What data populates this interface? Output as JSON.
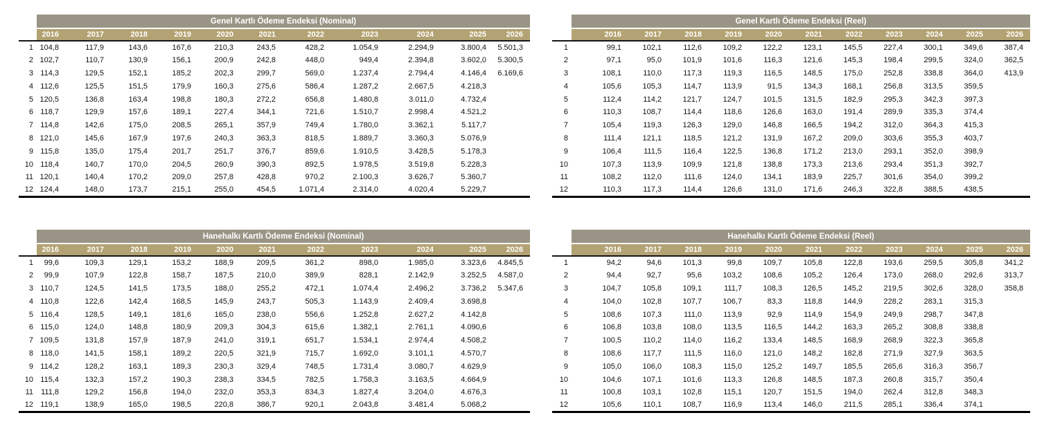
{
  "colors": {
    "title_bar_bg": "#999485",
    "year_bar_bg": "#B3A273",
    "header_text": "#ffffff",
    "body_text": "#111111"
  },
  "years": [
    "2016",
    "2017",
    "2018",
    "2019",
    "2020",
    "2021",
    "2022",
    "2023",
    "2024",
    "2025",
    "2026"
  ],
  "tables": [
    {
      "title": "Genel Kartlı Ödeme Endeksi (Nominal)",
      "rows": [
        {
          "label": "1",
          "values": [
            "104,8",
            "117,9",
            "143,6",
            "167,6",
            "210,3",
            "243,5",
            "428,2",
            "1.054,9",
            "2.294,9",
            "3.800,4",
            "5.501,3"
          ]
        },
        {
          "label": "2",
          "values": [
            "102,7",
            "110,7",
            "130,9",
            "156,1",
            "200,9",
            "242,8",
            "448,0",
            "949,4",
            "2.394,8",
            "3.602,0",
            "5.300,5"
          ]
        },
        {
          "label": "3",
          "values": [
            "114,3",
            "129,5",
            "152,1",
            "185,2",
            "202,3",
            "299,7",
            "569,0",
            "1.237,4",
            "2.794,4",
            "4.146,4",
            "6.169,6"
          ]
        },
        {
          "label": "4",
          "values": [
            "112,6",
            "125,5",
            "151,5",
            "179,9",
            "160,3",
            "275,6",
            "586,4",
            "1.287,2",
            "2.667,5",
            "4.218,3",
            ""
          ]
        },
        {
          "label": "5",
          "values": [
            "120,5",
            "136,8",
            "163,4",
            "198,8",
            "180,3",
            "272,2",
            "656,8",
            "1.480,8",
            "3.011,0",
            "4.732,4",
            ""
          ]
        },
        {
          "label": "6",
          "values": [
            "118,7",
            "129,9",
            "157,6",
            "189,1",
            "227,4",
            "344,1",
            "721,6",
            "1.510,7",
            "2.998,4",
            "4.521,2",
            ""
          ]
        },
        {
          "label": "7",
          "values": [
            "114,8",
            "142,6",
            "175,0",
            "208,5",
            "265,1",
            "357,9",
            "749,4",
            "1.780,0",
            "3.362,1",
            "5.117,7",
            ""
          ]
        },
        {
          "label": "8",
          "values": [
            "121,0",
            "145,6",
            "167,9",
            "197,6",
            "240,3",
            "363,3",
            "818,5",
            "1.889,7",
            "3.360,3",
            "5.076,9",
            ""
          ]
        },
        {
          "label": "9",
          "values": [
            "115,8",
            "135,0",
            "175,4",
            "201,7",
            "251,7",
            "376,7",
            "859,6",
            "1.910,5",
            "3.428,5",
            "5.178,3",
            ""
          ]
        },
        {
          "label": "10",
          "values": [
            "118,4",
            "140,7",
            "170,0",
            "204,5",
            "260,9",
            "390,3",
            "892,5",
            "1.978,5",
            "3.519,8",
            "5.228,3",
            ""
          ]
        },
        {
          "label": "11",
          "values": [
            "120,1",
            "140,4",
            "170,2",
            "209,0",
            "257,8",
            "428,8",
            "970,2",
            "2.100,3",
            "3.626,7",
            "5.360,7",
            ""
          ]
        },
        {
          "label": "12",
          "values": [
            "124,4",
            "148,0",
            "173,7",
            "215,1",
            "255,0",
            "454,5",
            "1.071,4",
            "2.314,0",
            "4.020,4",
            "5.229,7",
            ""
          ]
        }
      ]
    },
    {
      "title": "Genel Kartlı Ödeme Endeksi (Reel)",
      "rows": [
        {
          "label": "1",
          "values": [
            "99,1",
            "102,1",
            "112,6",
            "109,2",
            "122,2",
            "123,1",
            "145,5",
            "227,4",
            "300,1",
            "349,6",
            "387,4"
          ]
        },
        {
          "label": "2",
          "values": [
            "97,1",
            "95,0",
            "101,9",
            "101,6",
            "116,3",
            "121,6",
            "145,3",
            "198,4",
            "299,5",
            "324,0",
            "362,5"
          ]
        },
        {
          "label": "3",
          "values": [
            "108,1",
            "110,0",
            "117,3",
            "119,3",
            "116,5",
            "148,5",
            "175,0",
            "252,8",
            "338,8",
            "364,0",
            "413,9"
          ]
        },
        {
          "label": "4",
          "values": [
            "105,6",
            "105,3",
            "114,7",
            "113,9",
            "91,5",
            "134,3",
            "168,1",
            "256,8",
            "313,5",
            "359,5",
            ""
          ]
        },
        {
          "label": "5",
          "values": [
            "112,4",
            "114,2",
            "121,7",
            "124,7",
            "101,5",
            "131,5",
            "182,9",
            "295,3",
            "342,3",
            "397,3",
            ""
          ]
        },
        {
          "label": "6",
          "values": [
            "110,3",
            "108,7",
            "114,4",
            "118,6",
            "126,6",
            "163,0",
            "191,4",
            "289,9",
            "335,3",
            "374,4",
            ""
          ]
        },
        {
          "label": "7",
          "values": [
            "105,4",
            "119,3",
            "126,3",
            "129,0",
            "146,8",
            "166,5",
            "194,2",
            "312,0",
            "364,3",
            "415,3",
            ""
          ]
        },
        {
          "label": "8",
          "values": [
            "111,4",
            "121,1",
            "118,5",
            "121,2",
            "131,9",
            "167,2",
            "209,0",
            "303,6",
            "355,3",
            "403,7",
            ""
          ]
        },
        {
          "label": "9",
          "values": [
            "106,4",
            "111,5",
            "116,4",
            "122,5",
            "136,8",
            "171,2",
            "213,0",
            "293,1",
            "352,0",
            "398,9",
            ""
          ]
        },
        {
          "label": "10",
          "values": [
            "107,3",
            "113,9",
            "109,9",
            "121,8",
            "138,8",
            "173,3",
            "213,6",
            "293,4",
            "351,3",
            "392,7",
            ""
          ]
        },
        {
          "label": "11",
          "values": [
            "108,2",
            "112,0",
            "111,6",
            "124,0",
            "134,1",
            "183,9",
            "225,7",
            "301,6",
            "354,0",
            "399,2",
            ""
          ]
        },
        {
          "label": "12",
          "values": [
            "110,3",
            "117,3",
            "114,4",
            "126,6",
            "131,0",
            "171,6",
            "246,3",
            "322,8",
            "388,5",
            "438,5",
            ""
          ]
        }
      ]
    },
    {
      "title": "Hanehalkı Kartlı Ödeme Endeksi (Nominal)",
      "rows": [
        {
          "label": "1",
          "values": [
            "99,6",
            "109,3",
            "129,1",
            "153,2",
            "188,9",
            "209,5",
            "361,2",
            "898,0",
            "1.985,0",
            "3.323,6",
            "4.845,5"
          ]
        },
        {
          "label": "2",
          "values": [
            "99,9",
            "107,9",
            "122,8",
            "158,7",
            "187,5",
            "210,0",
            "389,9",
            "828,1",
            "2.142,9",
            "3.252,5",
            "4.587,0"
          ]
        },
        {
          "label": "3",
          "values": [
            "110,7",
            "124,5",
            "141,5",
            "173,5",
            "188,0",
            "255,2",
            "472,1",
            "1.074,4",
            "2.496,2",
            "3.736,2",
            "5.347,6"
          ]
        },
        {
          "label": "4",
          "values": [
            "110,8",
            "122,6",
            "142,4",
            "168,5",
            "145,9",
            "243,7",
            "505,3",
            "1.143,9",
            "2.409,4",
            "3.698,8",
            ""
          ]
        },
        {
          "label": "5",
          "values": [
            "116,4",
            "128,5",
            "149,1",
            "181,6",
            "165,0",
            "238,0",
            "556,6",
            "1.252,8",
            "2.627,2",
            "4.142,8",
            ""
          ]
        },
        {
          "label": "6",
          "values": [
            "115,0",
            "124,0",
            "148,8",
            "180,9",
            "209,3",
            "304,3",
            "615,6",
            "1.382,1",
            "2.761,1",
            "4.090,6",
            ""
          ]
        },
        {
          "label": "7",
          "values": [
            "109,5",
            "131,8",
            "157,9",
            "187,9",
            "241,0",
            "319,1",
            "651,7",
            "1.534,1",
            "2.974,4",
            "4.508,2",
            ""
          ]
        },
        {
          "label": "8",
          "values": [
            "118,0",
            "141,5",
            "158,1",
            "189,2",
            "220,5",
            "321,9",
            "715,7",
            "1.692,0",
            "3.101,1",
            "4.570,7",
            ""
          ]
        },
        {
          "label": "9",
          "values": [
            "114,2",
            "128,2",
            "163,1",
            "189,3",
            "230,3",
            "329,4",
            "748,5",
            "1.731,4",
            "3.080,7",
            "4.629,9",
            ""
          ]
        },
        {
          "label": "10",
          "values": [
            "115,4",
            "132,3",
            "157,2",
            "190,3",
            "238,3",
            "334,5",
            "782,5",
            "1.758,3",
            "3.163,5",
            "4.664,9",
            ""
          ]
        },
        {
          "label": "11",
          "values": [
            "111,8",
            "129,2",
            "156,8",
            "194,0",
            "232,0",
            "353,3",
            "834,3",
            "1.827,4",
            "3.204,0",
            "4.676,3",
            ""
          ]
        },
        {
          "label": "12",
          "values": [
            "119,1",
            "138,9",
            "165,0",
            "198,5",
            "220,8",
            "386,7",
            "920,1",
            "2.043,8",
            "3.481,4",
            "5.068,2",
            ""
          ]
        }
      ]
    },
    {
      "title": "Hanehalkı Kartlı Ödeme Endeksi (Reel)",
      "rows": [
        {
          "label": "1",
          "values": [
            "94,2",
            "94,6",
            "101,3",
            "99,8",
            "109,7",
            "105,8",
            "122,8",
            "193,6",
            "259,5",
            "305,8",
            "341,2"
          ]
        },
        {
          "label": "2",
          "values": [
            "94,4",
            "92,7",
            "95,6",
            "103,2",
            "108,6",
            "105,2",
            "126,4",
            "173,0",
            "268,0",
            "292,6",
            "313,7"
          ]
        },
        {
          "label": "3",
          "values": [
            "104,7",
            "105,8",
            "109,1",
            "111,7",
            "108,3",
            "126,5",
            "145,2",
            "219,5",
            "302,6",
            "328,0",
            "358,8"
          ]
        },
        {
          "label": "4",
          "values": [
            "104,0",
            "102,8",
            "107,7",
            "106,7",
            "83,3",
            "118,8",
            "144,9",
            "228,2",
            "283,1",
            "315,3",
            ""
          ]
        },
        {
          "label": "5",
          "values": [
            "108,6",
            "107,3",
            "111,0",
            "113,9",
            "92,9",
            "114,9",
            "154,9",
            "249,9",
            "298,7",
            "347,8",
            ""
          ]
        },
        {
          "label": "6",
          "values": [
            "106,8",
            "103,8",
            "108,0",
            "113,5",
            "116,5",
            "144,2",
            "163,3",
            "265,2",
            "308,8",
            "338,8",
            ""
          ]
        },
        {
          "label": "7",
          "values": [
            "100,5",
            "110,2",
            "114,0",
            "116,2",
            "133,4",
            "148,5",
            "168,9",
            "268,9",
            "322,3",
            "365,8",
            ""
          ]
        },
        {
          "label": "8",
          "values": [
            "108,6",
            "117,7",
            "111,5",
            "116,0",
            "121,0",
            "148,2",
            "182,8",
            "271,9",
            "327,9",
            "363,5",
            ""
          ]
        },
        {
          "label": "9",
          "values": [
            "105,0",
            "106,0",
            "108,3",
            "115,0",
            "125,2",
            "149,7",
            "185,5",
            "265,6",
            "316,3",
            "356,7",
            ""
          ]
        },
        {
          "label": "10",
          "values": [
            "104,6",
            "107,1",
            "101,6",
            "113,3",
            "126,8",
            "148,5",
            "187,3",
            "260,8",
            "315,7",
            "350,4",
            ""
          ]
        },
        {
          "label": "11",
          "values": [
            "100,8",
            "103,1",
            "102,8",
            "115,1",
            "120,7",
            "151,5",
            "194,0",
            "262,4",
            "312,8",
            "348,3",
            ""
          ]
        },
        {
          "label": "12",
          "values": [
            "105,6",
            "110,1",
            "108,7",
            "116,9",
            "113,4",
            "146,0",
            "211,5",
            "285,1",
            "336,4",
            "374,1",
            ""
          ]
        }
      ]
    }
  ]
}
